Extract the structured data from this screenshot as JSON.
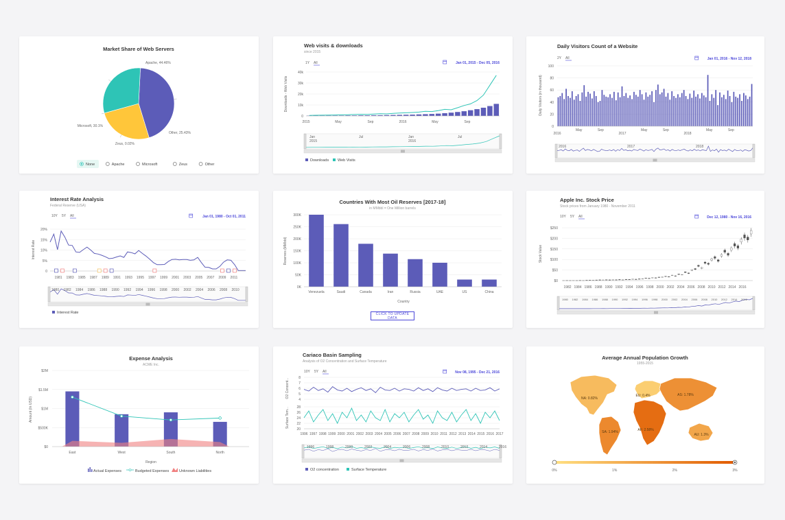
{
  "colors": {
    "primary": "#5c5cb8",
    "teal": "#2ec4b6",
    "yellow": "#ffc63a",
    "coral": "#f08080",
    "link": "#4b47d9"
  },
  "chart_data": [
    {
      "id": "pie",
      "type": "pie",
      "title": "Market Share of Web Servers",
      "slices": [
        {
          "name": "Apache",
          "value": 44.46,
          "label": "Apache, 44.46%",
          "color": "#5c5cb8"
        },
        {
          "name": "Other",
          "value": 25.43,
          "label": "Other, 25.43%",
          "color": "#ffc63a"
        },
        {
          "name": "Zeus",
          "value": 0.02,
          "label": "Zeus, 0.02%",
          "color": "#b0b0b0"
        },
        {
          "name": "Microsoft",
          "value": 30.1,
          "label": "Microsoft, 30.1%",
          "color": "#2ec4b6"
        }
      ],
      "legend": [
        "None",
        "Apache",
        "Microsoft",
        "Zeus",
        "Other"
      ],
      "legend_selected": "None"
    },
    {
      "id": "webvisits",
      "type": "area",
      "title": "Web visits & downloads",
      "subtitle": "since 2015",
      "range_buttons": [
        "1Y",
        "All"
      ],
      "range_selected": "All",
      "date_range": "Jan 01, 2015 - Dec 05, 2016",
      "ylabel": "Downloads - Web Visits",
      "yticks": [
        "0",
        "10k",
        "20k",
        "30k",
        "40k"
      ],
      "xticks": [
        "2015",
        "May",
        "Sep",
        "2016",
        "May",
        "Sep"
      ],
      "nav_ticks": [
        "Jan",
        "Jul",
        "Jan",
        "Jul"
      ],
      "nav_years": [
        "2015",
        "2016"
      ],
      "series": [
        {
          "name": "Downloads",
          "values": [
            0.3,
            0.3,
            0.3,
            0.4,
            0.4,
            0.4,
            0.5,
            0.5,
            0.6,
            0.6,
            0.7,
            0.7,
            0.8,
            0.9,
            1,
            1.1,
            1.2,
            1.4,
            1.6,
            1.8,
            2.1,
            2.5,
            3,
            3.6,
            4.3,
            5.2,
            6.2,
            7.5,
            9,
            11
          ]
        },
        {
          "name": "Web Visits",
          "values": [
            0.5,
            0.6,
            0.7,
            0.8,
            0.9,
            1,
            1.1,
            1.3,
            1.5,
            1.4,
            1.7,
            2,
            1.9,
            2.3,
            2.6,
            2.9,
            3.1,
            3.5,
            4.2,
            4,
            4.8,
            6,
            5.6,
            7.5,
            9.5,
            11,
            14,
            19,
            28,
            37
          ]
        }
      ],
      "ylim": [
        0,
        40
      ]
    },
    {
      "id": "visitors",
      "type": "bar",
      "title": "Daily Visitors Count of a Website",
      "range_buttons": [
        "2Y",
        "All"
      ],
      "range_selected": "All",
      "date_range": "Jan 01, 2016 - Nov 12, 2018",
      "ylabel": "Daily Visitors (in thousand)",
      "yticks": [
        "0",
        "20",
        "40",
        "60",
        "80",
        "100"
      ],
      "xticks": [
        "2016",
        "May",
        "Sep",
        "2017",
        "May",
        "Sep",
        "2018",
        "May",
        "Sep"
      ],
      "nav_years": [
        "2016",
        "2017",
        "2018"
      ],
      "values": [
        48,
        50,
        55,
        45,
        62,
        50,
        47,
        58,
        44,
        50,
        53,
        42,
        56,
        68,
        49,
        57,
        54,
        46,
        58,
        50,
        40,
        42,
        60,
        52,
        49,
        48,
        53,
        47,
        57,
        43,
        56,
        48,
        66,
        50,
        55,
        47,
        51,
        45,
        57,
        52,
        49,
        60,
        53,
        44,
        56,
        49,
        52,
        58,
        40,
        60,
        69,
        53,
        56,
        62,
        49,
        55,
        44,
        58,
        50,
        47,
        53,
        48,
        55,
        60,
        50,
        45,
        54,
        47,
        59,
        49,
        53,
        46,
        55,
        51,
        48,
        85,
        42,
        53,
        47,
        60,
        35,
        56,
        48,
        52,
        45,
        59,
        50,
        40,
        57,
        49,
        47,
        53,
        42,
        55,
        51,
        45,
        49,
        70
      ],
      "ylim": [
        0,
        100
      ]
    },
    {
      "id": "interest",
      "type": "line",
      "title": "Interest Rate Analysis",
      "subtitle": "Federal Reserve (USA)",
      "range_buttons": [
        "10Y",
        "5Y",
        "All"
      ],
      "range_selected": "All",
      "date_range": "Jan 01, 1980 - Oct 01, 2011",
      "ylabel": "Interest Rate",
      "yticks": [
        "0",
        "5%",
        "10%",
        "15%",
        "20%"
      ],
      "xticks": [
        "1981",
        "1983",
        "1985",
        "1987",
        "1989",
        "1991",
        "1993",
        "1995",
        "1997",
        "1999",
        "2001",
        "2003",
        "2005",
        "2007",
        "2009",
        "2011"
      ],
      "nav_ticks": [
        "1980",
        "1982",
        "1984",
        "1986",
        "1988",
        "1990",
        "1992",
        "1994",
        "1996",
        "1998",
        "2000",
        "2002",
        "2004",
        "2006",
        "2008",
        "2010"
      ],
      "series": [
        {
          "name": "Interest Rate",
          "values": [
            13.8,
            17.6,
            10.2,
            19.1,
            16.2,
            12.4,
            12.2,
            9.1,
            8.9,
            10.2,
            11.4,
            10,
            8.4,
            8.1,
            7.5,
            6.8,
            5.9,
            6.1,
            6.7,
            7.2,
            6.5,
            9.1,
            8.8,
            8.2,
            9.8,
            8.4,
            7.1,
            5.6,
            4,
            3,
            3,
            3.1,
            4.5,
            5.5,
            5.6,
            5.3,
            5.5,
            5.5,
            5.1,
            5.3,
            6.5,
            4,
            1.8,
            1.7,
            1,
            1,
            2.2,
            4.2,
            5.3,
            5.1,
            3,
            0.2,
            0.2,
            0.2
          ]
        }
      ],
      "markers": [
        {
          "year": "1981",
          "color": "#5c5cb8"
        },
        {
          "year": "1982",
          "color": "#f08080"
        },
        {
          "year": "1984",
          "color": "#5c5cb8"
        },
        {
          "year": "1988",
          "color": "#f0c060"
        },
        {
          "year": "1989",
          "color": "#f08080"
        },
        {
          "year": "1990",
          "color": "#5c5cb8"
        },
        {
          "year": "1997",
          "color": "#f08080"
        },
        {
          "year": "2008",
          "color": "#f08080"
        },
        {
          "year": "2009",
          "color": "#5c5cb8"
        },
        {
          "year": "2010",
          "color": "#f08080"
        }
      ],
      "ylim": [
        0,
        20
      ]
    },
    {
      "id": "oil",
      "type": "bar",
      "title": "Countries With Most Oil Reserves [2017-18]",
      "subtitle": "in MMbbl = One Million barrels",
      "categories": [
        "Venezuela",
        "Saudi",
        "Canada",
        "Iran",
        "Russia",
        "UAE",
        "US",
        "China"
      ],
      "values": [
        300,
        261,
        179,
        138,
        115,
        100,
        30,
        30
      ],
      "yticks": [
        "0K",
        "50K",
        "100K",
        "150K",
        "200K",
        "250K",
        "300K"
      ],
      "ylabel": "Reserves (MMbbl)",
      "xlabel": "Country",
      "button": "CLICK TO UPDATE DATA",
      "ylim": [
        0,
        300
      ]
    },
    {
      "id": "apple",
      "type": "line",
      "title": "Apple Inc. Stock Price",
      "subtitle": "Stock prices from January 1980 - November 2011",
      "range_buttons": [
        "10Y",
        "5Y",
        "All"
      ],
      "range_selected": "All",
      "date_range": "Dec 12, 1980 - Nov 16, 2016",
      "ylabel": "Stock Value",
      "yticks": [
        "$0",
        "$50",
        "$100",
        "$150",
        "$200",
        "$250"
      ],
      "xticks": [
        "1982",
        "1984",
        "1986",
        "1988",
        "1990",
        "1992",
        "1994",
        "1996",
        "1998",
        "2000",
        "2002",
        "2004",
        "2006",
        "2008",
        "2010",
        "2012",
        "2014",
        "2016"
      ],
      "nav_ticks": [
        "1980",
        "1982",
        "1984",
        "1986",
        "1988",
        "1990",
        "1992",
        "1994",
        "1996",
        "1998",
        "2000",
        "2002",
        "2004",
        "2006",
        "2008",
        "2010",
        "2012",
        "2014",
        "2016"
      ],
      "values": [
        1,
        1.2,
        1,
        1.3,
        1.1,
        1.5,
        1.4,
        2,
        2.4,
        2.2,
        3,
        3.5,
        3.2,
        4,
        3.5,
        4.5,
        4.2,
        5,
        4.5,
        6,
        5.5,
        7,
        6.5,
        8,
        9,
        12,
        11,
        14,
        13,
        16,
        17,
        20,
        18,
        25,
        22,
        30,
        28,
        40,
        35,
        50,
        55,
        70,
        60,
        85,
        80,
        100,
        110,
        95,
        120,
        140,
        125,
        150,
        170,
        160,
        190,
        210,
        200,
        230
      ],
      "ylim": [
        0,
        250
      ]
    },
    {
      "id": "expense",
      "type": "bar",
      "title": "Expense Analysis",
      "subtitle": "ACME Inc.",
      "categories": [
        "East",
        "West",
        "South",
        "North"
      ],
      "yticks": [
        "$0",
        "$500K",
        "$1M",
        "$1.5M",
        "$2M"
      ],
      "ylabel": "Amount (In USD)",
      "xlabel": "Region",
      "series": [
        {
          "name": "Actual Expenses",
          "values": [
            1.45,
            0.85,
            0.9,
            0.65
          ]
        },
        {
          "name": "Budgeted Expenses",
          "values": [
            1.3,
            0.8,
            0.7,
            0.75
          ]
        },
        {
          "name": "Unknown Liabilities",
          "values": [
            0.15,
            0.1,
            0.2,
            0.12
          ]
        }
      ],
      "ylim": [
        0,
        2
      ]
    },
    {
      "id": "cariaco",
      "type": "line",
      "title": "Cariaco Basin Sampling",
      "subtitle": "Analysis of O2 Concentration and Surface Temperature",
      "range_buttons": [
        "10Y",
        "5Y",
        "All"
      ],
      "range_selected": "All",
      "date_range": "Nov 08, 1995 - Dec 21, 2016",
      "ylabel_top": "O2 Concent...",
      "ylabel_bottom": "Surface Tem...",
      "yticks_top": [
        "4",
        "5",
        "6",
        "7",
        "8"
      ],
      "yticks_bottom": [
        "20",
        "22",
        "24",
        "26",
        "28"
      ],
      "xticks": [
        "1996",
        "1997",
        "1998",
        "1999",
        "2000",
        "2001",
        "2002",
        "2003",
        "2004",
        "2005",
        "2006",
        "2007",
        "2008",
        "2009",
        "2010",
        "2011",
        "2012",
        "2013",
        "2014",
        "2015",
        "2016",
        "2017"
      ],
      "nav_ticks": [
        "1996",
        "1998",
        "2000",
        "2002",
        "2004",
        "2006",
        "2008",
        "2010",
        "2012",
        "2014",
        "2016"
      ],
      "series": [
        {
          "name": "O2 concentration",
          "values": [
            5.8,
            5.5,
            6.2,
            5.6,
            5.9,
            5.3,
            6.3,
            5.7,
            5.5,
            6,
            5.4,
            5.8,
            6.1,
            5.6,
            5.9,
            5.2,
            6.2,
            5.7,
            5.6,
            6,
            5.5,
            5.9,
            5.8,
            5.5,
            6.1,
            5.6,
            5.9,
            5.4,
            6.1,
            5.7,
            5.5,
            6,
            5.6,
            5.8,
            5.9,
            5.5,
            6,
            5.6,
            5.7,
            6.1,
            5.5,
            5.9
          ]
        },
        {
          "name": "Surface Temperature",
          "values": [
            24,
            26.5,
            22.5,
            25,
            27,
            23,
            25.5,
            22,
            26,
            24,
            27.5,
            23,
            25,
            22.5,
            26.5,
            24,
            23,
            27,
            22.5,
            25.5,
            24,
            26,
            22.5,
            25,
            27,
            23.5,
            25,
            22,
            26.5,
            24,
            23,
            26,
            22.5,
            25,
            27,
            23,
            25.5,
            22,
            26,
            24,
            26.5,
            23
          ]
        }
      ]
    },
    {
      "id": "population",
      "type": "map",
      "title": "Average Annual Population Growth",
      "subtitle": "1955-2015",
      "regions": [
        {
          "code": "NA",
          "label": "NA: 0.82%",
          "value": 0.82
        },
        {
          "code": "EU",
          "label": "EU: 0.4%",
          "value": 0.4
        },
        {
          "code": "AS",
          "label": "AS: 1.78%",
          "value": 1.78
        },
        {
          "code": "AF",
          "label": "AF: 2.58%",
          "value": 2.58
        },
        {
          "code": "SA",
          "label": "SA: 1.94%",
          "value": 1.94
        },
        {
          "code": "AU",
          "label": "AU: 1.3%",
          "value": 1.3
        }
      ],
      "scale": [
        "0%",
        "1%",
        "2%",
        "3%"
      ]
    }
  ]
}
